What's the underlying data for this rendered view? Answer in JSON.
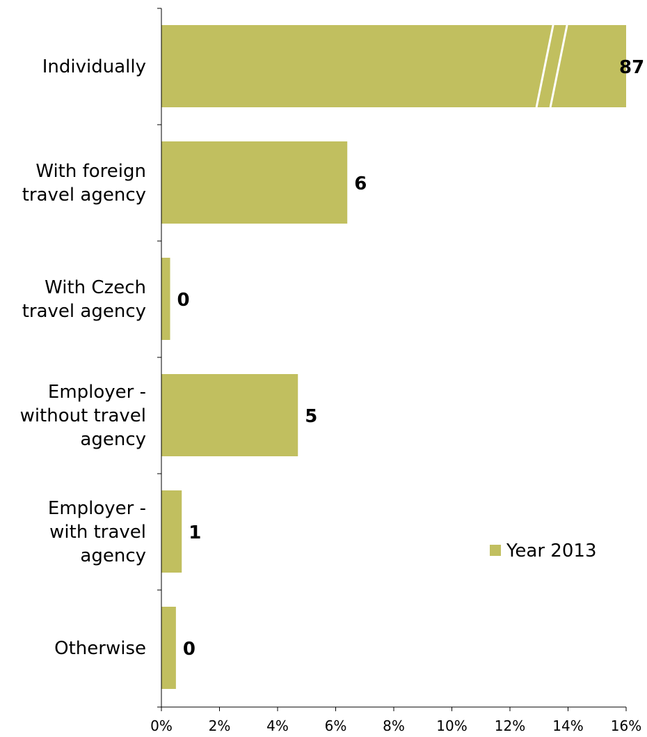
{
  "chart_data": {
    "type": "bar",
    "orientation": "horizontal",
    "categories": [
      [
        "Individually"
      ],
      [
        "With foreign",
        "travel agency"
      ],
      [
        "With Czech",
        "travel agency"
      ],
      [
        "Employer -",
        "without travel",
        "agency"
      ],
      [
        "Employer -",
        "with travel",
        "agency"
      ],
      [
        "Otherwise"
      ]
    ],
    "series": [
      {
        "name": "Year 2013",
        "values": [
          87,
          6.4,
          0.3,
          4.7,
          0.7,
          0.5
        ],
        "data_labels": [
          "87",
          "6",
          "0",
          "5",
          "1",
          "0"
        ],
        "color": "#c1bf5f"
      }
    ],
    "xlim": [
      0,
      16
    ],
    "xticks": [
      0,
      2,
      4,
      6,
      8,
      10,
      12,
      14,
      16
    ],
    "xtick_labels": [
      "0%",
      "2%",
      "4%",
      "6%",
      "8%",
      "10%",
      "12%",
      "14%",
      "16%"
    ],
    "axis_break": {
      "category_index": 0,
      "note": "bar truncated at axis max with break marks"
    },
    "legend": {
      "position": "right",
      "entries": [
        "Year 2013"
      ]
    },
    "grid": false
  }
}
